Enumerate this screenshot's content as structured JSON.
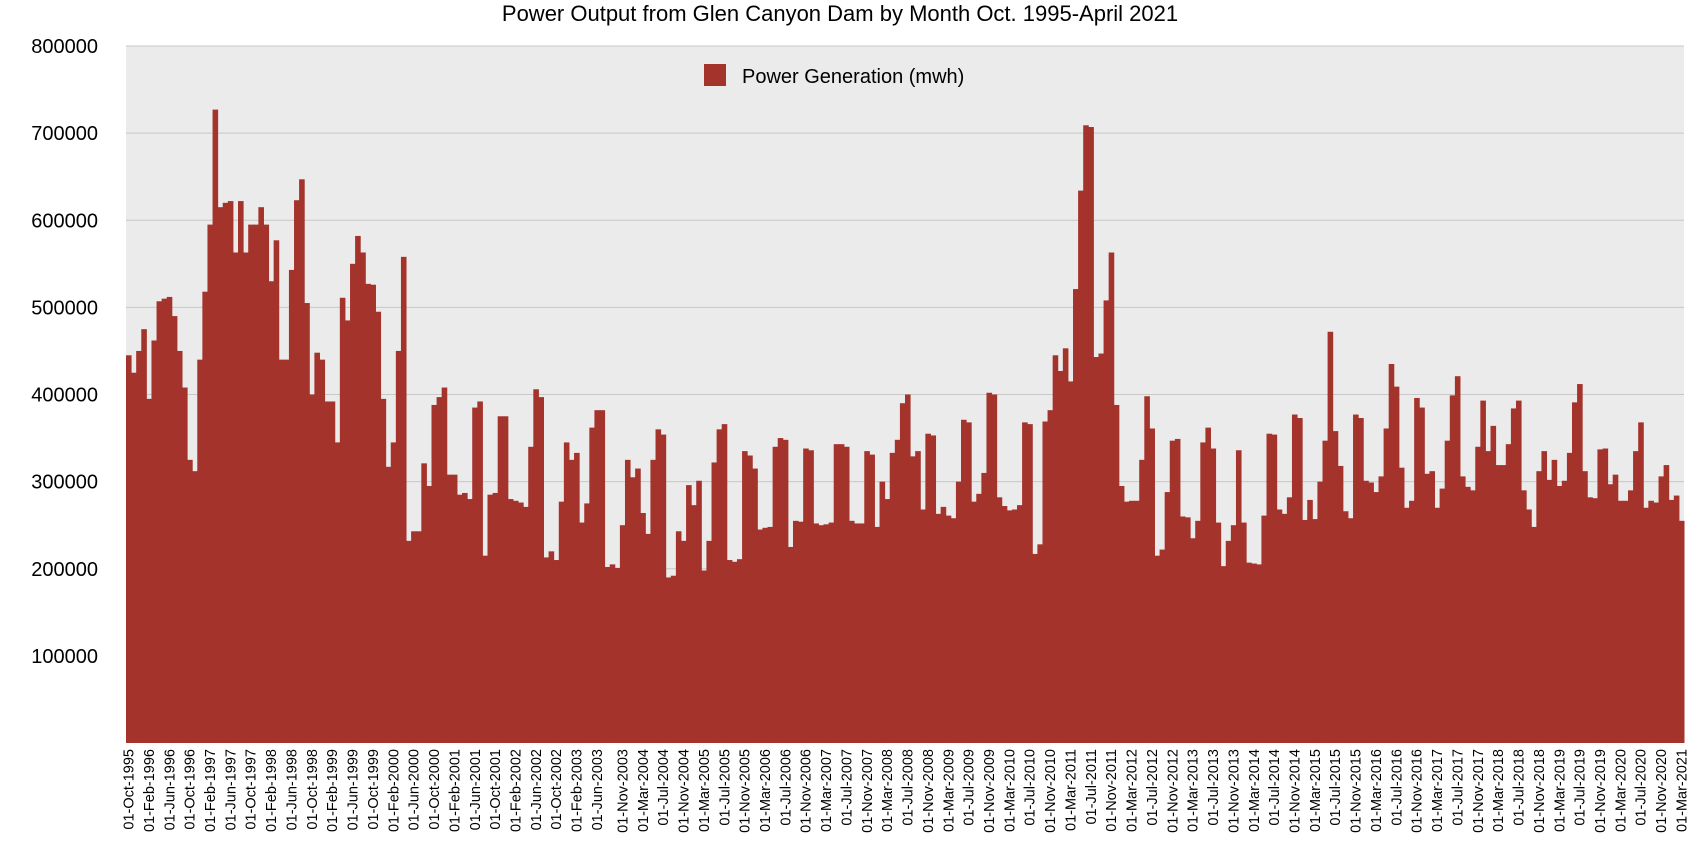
{
  "chart_data": {
    "type": "bar",
    "title": "Power Output from Glen Canyon Dam by Month Oct. 1995-April 2021",
    "xlabel": "",
    "ylabel": "",
    "ylim": [
      0,
      800000
    ],
    "yticks": [
      100000,
      200000,
      300000,
      400000,
      500000,
      600000,
      700000,
      800000
    ],
    "grid": true,
    "legend_position": "top-center",
    "colors": {
      "bar": "#a4332c",
      "plot_bg": "#ebebeb",
      "grid": "#c8c8c8"
    },
    "x_start": "1995-10",
    "x_end": "2021-04",
    "x_tick_labels": [
      "01-Oct-1995",
      "01-Feb-1996",
      "01-Jun-1996",
      "01-Oct-1996",
      "01-Feb-1997",
      "01-Jun-1997",
      "01-Oct-1997",
      "01-Feb-1998",
      "01-Jun-1998",
      "01-Oct-1998",
      "01-Feb-1999",
      "01-Jun-1999",
      "01-Oct-1999",
      "01-Feb-2000",
      "01-Jun-2000",
      "01-Oct-2000",
      "01-Feb-2001",
      "01-Jun-2001",
      "01-Oct-2001",
      "01-Feb-2002",
      "01-Jun-2002",
      "01-Oct-2002",
      "01-Feb-2003",
      "01-Jun-2003",
      "01-Nov-2003",
      "01-Mar-2004",
      "01-Jul-2004",
      "01-Nov-2004",
      "01-Mar-2005",
      "01-Jul-2005",
      "01-Nov-2005",
      "01-Mar-2006",
      "01-Jul-2006",
      "01-Nov-2006",
      "01-Mar-2007",
      "01-Jul-2007",
      "01-Nov-2007",
      "01-Mar-2008",
      "01-Jul-2008",
      "01-Nov-2008",
      "01-Mar-2009",
      "01-Jul-2009",
      "01-Nov-2009",
      "01-Mar-2010",
      "01-Jul-2010",
      "01-Nov-2010",
      "01-Mar-2011",
      "01-Jul-2011",
      "01-Nov-2011",
      "01-Mar-2012",
      "01-Jul-2012",
      "01-Nov-2012",
      "01-Mar-2013",
      "01-Jul-2013",
      "01-Nov-2013",
      "01-Mar-2014",
      "01-Jul-2014",
      "01-Nov-2014",
      "01-Mar-2015",
      "01-Jul-2015",
      "01-Nov-2015",
      "01-Mar-2016",
      "01-Jul-2016",
      "01-Nov-2016",
      "01-Mar-2017",
      "01-Jul-2017",
      "01-Nov-2017",
      "01-Mar-2018",
      "01-Jul-2018",
      "01-Nov-2018",
      "01-Mar-2019",
      "01-Jul-2019",
      "01-Nov-2019",
      "01-Mar-2020",
      "01-Jul-2020",
      "01-Nov-2020",
      "01-Mar-2021"
    ],
    "series": [
      {
        "name": "Power Generation (mwh)",
        "values": [
          445000,
          425000,
          450000,
          475000,
          395000,
          462000,
          507000,
          510000,
          512000,
          490000,
          450000,
          408000,
          325000,
          312000,
          440000,
          518000,
          595000,
          727000,
          615000,
          620000,
          622000,
          563000,
          622000,
          563000,
          595000,
          595000,
          615000,
          595000,
          530000,
          577000,
          440000,
          440000,
          543000,
          623000,
          647000,
          505000,
          400000,
          448000,
          440000,
          392000,
          392000,
          345000,
          511000,
          485000,
          550000,
          582000,
          563000,
          527000,
          526000,
          495000,
          395000,
          317000,
          345000,
          450000,
          558000,
          232000,
          243000,
          243000,
          321000,
          295000,
          388000,
          397000,
          408000,
          308000,
          308000,
          285000,
          287000,
          280000,
          385000,
          392000,
          215000,
          285000,
          287000,
          375000,
          375000,
          280000,
          278000,
          276000,
          271000,
          340000,
          406000,
          397000,
          213000,
          220000,
          210000,
          277000,
          345000,
          325000,
          333000,
          253000,
          275000,
          362000,
          382000,
          382000,
          202000,
          205000,
          201000,
          250000,
          325000,
          305000,
          315000,
          264000,
          240000,
          325000,
          360000,
          354000,
          190000,
          192000,
          243000,
          232000,
          296000,
          273000,
          301000,
          198000,
          232000,
          322000,
          360000,
          366000,
          210000,
          208000,
          211000,
          335000,
          330000,
          315000,
          245000,
          247000,
          248000,
          340000,
          350000,
          348000,
          225000,
          255000,
          254000,
          338000,
          336000,
          252000,
          250000,
          251000,
          253000,
          343000,
          343000,
          340000,
          255000,
          252000,
          252000,
          335000,
          331000,
          248000,
          300000,
          280000,
          333000,
          348000,
          390000,
          400000,
          329000,
          335000,
          268000,
          355000,
          353000,
          263000,
          271000,
          261000,
          258000,
          300000,
          371000,
          368000,
          277000,
          286000,
          310000,
          402000,
          400000,
          282000,
          272000,
          267000,
          268000,
          273000,
          368000,
          366000,
          217000,
          228000,
          369000,
          382000,
          445000,
          427000,
          453000,
          415000,
          521000,
          634000,
          709000,
          707000,
          443000,
          447000,
          508000,
          563000,
          388000,
          295000,
          277000,
          278000,
          278000,
          325000,
          398000,
          361000,
          215000,
          222000,
          288000,
          347000,
          349000,
          260000,
          259000,
          235000,
          255000,
          345000,
          362000,
          338000,
          253000,
          203000,
          232000,
          250000,
          336000,
          253000,
          207000,
          206000,
          205000,
          261000,
          355000,
          354000,
          268000,
          263000,
          282000,
          377000,
          373000,
          256000,
          279000,
          257000,
          300000,
          347000,
          472000,
          358000,
          318000,
          266000,
          258000,
          377000,
          373000,
          301000,
          299000,
          288000,
          306000,
          361000,
          435000,
          409000,
          316000,
          270000,
          278000,
          396000,
          385000,
          309000,
          312000,
          270000,
          292000,
          347000,
          399000,
          421000,
          306000,
          294000,
          290000,
          340000,
          393000,
          335000,
          364000,
          319000,
          319000,
          343000,
          384000,
          393000,
          290000,
          268000,
          248000,
          312000,
          335000,
          302000,
          325000,
          295000,
          301000,
          333000,
          391000,
          412000,
          312000,
          282000,
          281000,
          337000,
          338000,
          297000,
          308000,
          278000,
          278000,
          290000,
          335000,
          368000,
          270000,
          278000,
          276000,
          306000,
          319000,
          279000,
          284000,
          255000
        ]
      }
    ]
  }
}
